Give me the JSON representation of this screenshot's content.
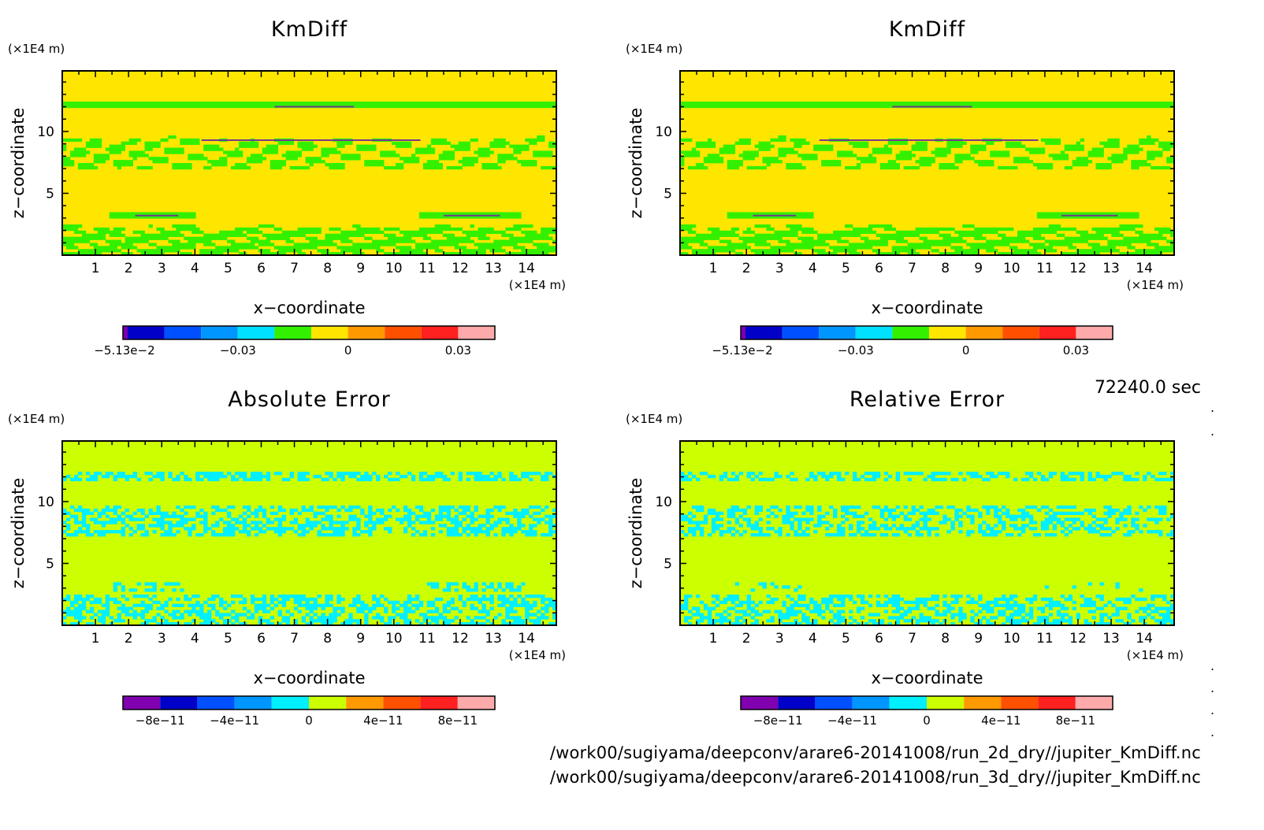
{
  "time_label": "72240.0 sec",
  "file_paths": [
    "/work00/sugiyama/deepconv/arare6-20141008/run_2d_dry//jupiter_KmDiff.nc",
    "/work00/sugiyama/deepconv/arare6-20141008/run_3d_dry//jupiter_KmDiff.nc"
  ],
  "colors": {
    "kmdiff_background": "#ffe600",
    "kmdiff_feature": "#33f000",
    "error_background": "#ccff00",
    "error_feature": "#00f0ff"
  },
  "chart_data": [
    {
      "type": "heatmap",
      "title": "KmDiff",
      "xlabel": "x−coordinate",
      "ylabel": "z−coordinate",
      "x_unit": "(×1E4 m)",
      "y_unit": "(×1E4 m)",
      "xlim": [
        0,
        14.9
      ],
      "ylim": [
        0,
        14.9
      ],
      "xticks": [
        1,
        2,
        3,
        4,
        5,
        6,
        7,
        8,
        9,
        10,
        11,
        12,
        13,
        14
      ],
      "yticks": [
        5,
        10
      ],
      "field": "kmdiff",
      "colorbar": {
        "colors": [
          "#7a00b0",
          "#0000c8",
          "#0050ff",
          "#0096ff",
          "#00e0ff",
          "#33f000",
          "#ffe600",
          "#ff9900",
          "#ff5000",
          "#ff2020",
          "#ffaaaa"
        ],
        "labels": [
          "−5.13e−2",
          "−0.03",
          "0",
          "0.03"
        ],
        "label_at": [
          0,
          0.03,
          0.06,
          0.09
        ],
        "range": [
          -0.0513,
          0.045
        ]
      }
    },
    {
      "type": "heatmap",
      "title": "KmDiff",
      "xlabel": "x−coordinate",
      "ylabel": "z−coordinate",
      "x_unit": "(×1E4 m)",
      "y_unit": "(×1E4 m)",
      "xlim": [
        0,
        14.9
      ],
      "ylim": [
        0,
        14.9
      ],
      "xticks": [
        1,
        2,
        3,
        4,
        5,
        6,
        7,
        8,
        9,
        10,
        11,
        12,
        13,
        14
      ],
      "yticks": [
        5,
        10
      ],
      "field": "kmdiff",
      "colorbar": {
        "colors": [
          "#7a00b0",
          "#0000c8",
          "#0050ff",
          "#0096ff",
          "#00e0ff",
          "#33f000",
          "#ffe600",
          "#ff9900",
          "#ff5000",
          "#ff2020",
          "#ffaaaa"
        ],
        "labels": [
          "−5.13e−2",
          "−0.03",
          "0",
          "0.03"
        ],
        "label_at": [
          0,
          0.03,
          0.06,
          0.09
        ],
        "range": [
          -0.0513,
          0.045
        ]
      }
    },
    {
      "type": "heatmap",
      "title": "Absolute Error",
      "xlabel": "x−coordinate",
      "ylabel": "z−coordinate",
      "x_unit": "(×1E4 m)",
      "y_unit": "(×1E4 m)",
      "xlim": [
        0,
        14.9
      ],
      "ylim": [
        0,
        14.9
      ],
      "xticks": [
        1,
        2,
        3,
        4,
        5,
        6,
        7,
        8,
        9,
        10,
        11,
        12,
        13,
        14
      ],
      "yticks": [
        5,
        10
      ],
      "field": "abs_error",
      "colorbar": {
        "colors": [
          "#8000b0",
          "#0000c8",
          "#0050ff",
          "#0096ff",
          "#00f0ff",
          "#ccff00",
          "#ff9900",
          "#ff5000",
          "#ff2020",
          "#ffaaaa"
        ],
        "labels": [
          "−8e−11",
          "−4e−11",
          "0",
          "4e−11",
          "8e−11"
        ],
        "label_at": [
          1,
          3,
          5,
          7,
          9
        ],
        "range": [
          0,
          10
        ]
      }
    },
    {
      "type": "heatmap",
      "title": "Relative Error",
      "xlabel": "x−coordinate",
      "ylabel": "z−coordinate",
      "x_unit": "(×1E4 m)",
      "y_unit": "(×1E4 m)",
      "xlim": [
        0,
        14.9
      ],
      "ylim": [
        0,
        14.9
      ],
      "xticks": [
        1,
        2,
        3,
        4,
        5,
        6,
        7,
        8,
        9,
        10,
        11,
        12,
        13,
        14
      ],
      "yticks": [
        5,
        10
      ],
      "field": "rel_error",
      "colorbar": {
        "colors": [
          "#8000b0",
          "#0000c8",
          "#0050ff",
          "#0096ff",
          "#00f0ff",
          "#ccff00",
          "#ff9900",
          "#ff5000",
          "#ff2020",
          "#ffaaaa"
        ],
        "labels": [
          "−8e−11",
          "−4e−11",
          "0",
          "4e−11",
          "8e−11"
        ],
        "label_at": [
          1,
          3,
          5,
          7,
          9
        ],
        "range": [
          0,
          10
        ]
      }
    }
  ]
}
